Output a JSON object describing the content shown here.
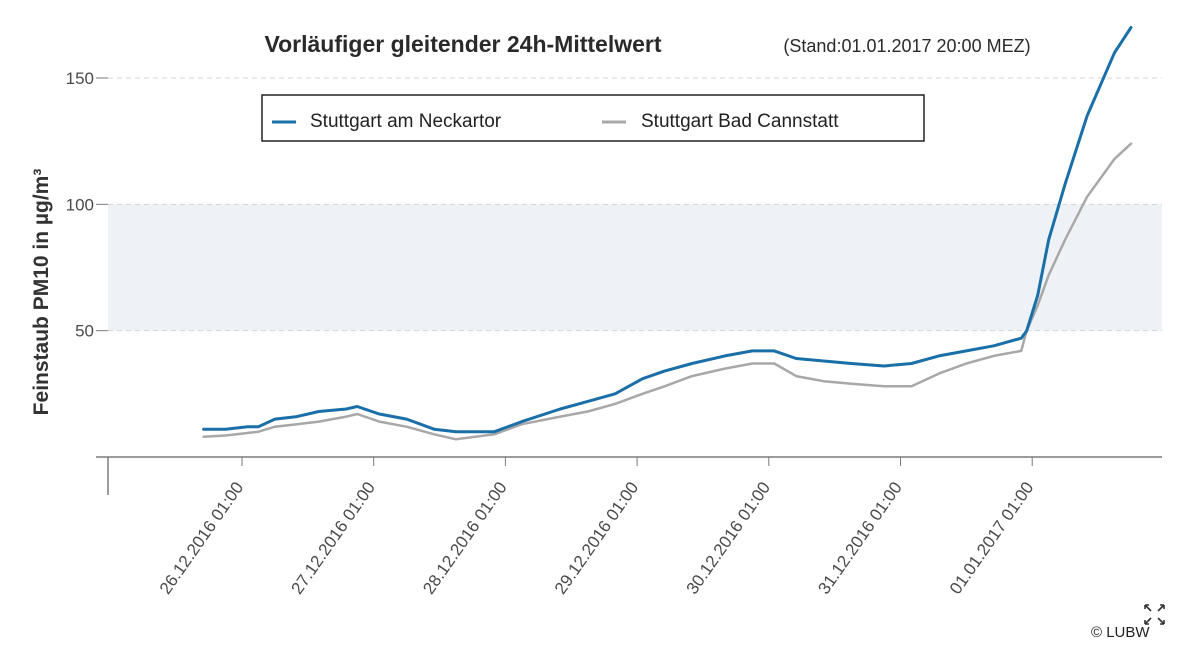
{
  "chart_data": {
    "type": "line",
    "title": "Vorläufiger gleitender 24h-Mittelwert",
    "subtitle": "(Stand:01.01.2017 20:00 MEZ)",
    "xlabel": "",
    "ylabel": "Feinstaub PM10 in µg/m³",
    "ylim": [
      0,
      150
    ],
    "yticks": [
      "50",
      "100",
      "150"
    ],
    "x_tick_labels": [
      "26.12.2016 01:00",
      "27.12.2016 01:00",
      "28.12.2016 01:00",
      "29.12.2016 01:00",
      "30.12.2016 01:00",
      "31.12.2016 01:00",
      "01.01.2017 01:00"
    ],
    "band": {
      "from": 50,
      "to": 100
    },
    "grid": "horizontal",
    "legend_position": "top-left",
    "series": [
      {
        "name": "Stuttgart am Neckartor",
        "color": "#1a6fa8",
        "points": [
          [
            "25.12.2016 18:00",
            11
          ],
          [
            "25.12.2016 22:00",
            11
          ],
          [
            "26.12.2016 02:00",
            12
          ],
          [
            "26.12.2016 04:00",
            12
          ],
          [
            "26.12.2016 07:00",
            15
          ],
          [
            "26.12.2016 11:00",
            16
          ],
          [
            "26.12.2016 15:00",
            18
          ],
          [
            "26.12.2016 20:00",
            19
          ],
          [
            "26.12.2016 22:00",
            20
          ],
          [
            "27.12.2016 02:00",
            17
          ],
          [
            "27.12.2016 07:00",
            15
          ],
          [
            "27.12.2016 12:00",
            11
          ],
          [
            "27.12.2016 16:00",
            10
          ],
          [
            "27.12.2016 23:00",
            10
          ],
          [
            "28.12.2016 04:00",
            14
          ],
          [
            "28.12.2016 11:00",
            19
          ],
          [
            "28.12.2016 16:00",
            22
          ],
          [
            "28.12.2016 21:00",
            25
          ],
          [
            "29.12.2016 02:00",
            31
          ],
          [
            "29.12.2016 06:00",
            34
          ],
          [
            "29.12.2016 11:00",
            37
          ],
          [
            "29.12.2016 17:00",
            40
          ],
          [
            "29.12.2016 22:00",
            42
          ],
          [
            "30.12.2016 02:00",
            42
          ],
          [
            "30.12.2016 06:00",
            39
          ],
          [
            "30.12.2016 11:00",
            38
          ],
          [
            "30.12.2016 16:00",
            37
          ],
          [
            "30.12.2016 22:00",
            36
          ],
          [
            "31.12.2016 03:00",
            37
          ],
          [
            "31.12.2016 08:00",
            40
          ],
          [
            "31.12.2016 13:00",
            42
          ],
          [
            "31.12.2016 18:00",
            44
          ],
          [
            "31.12.2016 23:00",
            47
          ],
          [
            "01.01.2017 00:00",
            50
          ],
          [
            "01.01.2017 02:00",
            64
          ],
          [
            "01.01.2017 04:00",
            86
          ],
          [
            "01.01.2017 07:00",
            108
          ],
          [
            "01.01.2017 11:00",
            135
          ],
          [
            "01.01.2017 16:00",
            160
          ],
          [
            "01.01.2017 19:00",
            170
          ]
        ]
      },
      {
        "name": "Stuttgart Bad Cannstatt",
        "color": "#a8a8a8",
        "points": [
          [
            "25.12.2016 18:00",
            8
          ],
          [
            "25.12.2016 22:00",
            8.5
          ],
          [
            "26.12.2016 02:00",
            9.5
          ],
          [
            "26.12.2016 04:00",
            10
          ],
          [
            "26.12.2016 07:00",
            12
          ],
          [
            "26.12.2016 11:00",
            13
          ],
          [
            "26.12.2016 15:00",
            14
          ],
          [
            "26.12.2016 20:00",
            16
          ],
          [
            "26.12.2016 22:00",
            17
          ],
          [
            "27.12.2016 02:00",
            14
          ],
          [
            "27.12.2016 07:00",
            12
          ],
          [
            "27.12.2016 12:00",
            9
          ],
          [
            "27.12.2016 16:00",
            7
          ],
          [
            "27.12.2016 23:00",
            9
          ],
          [
            "28.12.2016 04:00",
            13
          ],
          [
            "28.12.2016 11:00",
            16
          ],
          [
            "28.12.2016 16:00",
            18
          ],
          [
            "28.12.2016 21:00",
            21
          ],
          [
            "29.12.2016 02:00",
            25
          ],
          [
            "29.12.2016 06:00",
            28
          ],
          [
            "29.12.2016 11:00",
            32
          ],
          [
            "29.12.2016 17:00",
            35
          ],
          [
            "29.12.2016 22:00",
            37
          ],
          [
            "30.12.2016 02:00",
            37
          ],
          [
            "30.12.2016 06:00",
            32
          ],
          [
            "30.12.2016 11:00",
            30
          ],
          [
            "30.12.2016 16:00",
            29
          ],
          [
            "30.12.2016 22:00",
            28
          ],
          [
            "31.12.2016 03:00",
            28
          ],
          [
            "31.12.2016 08:00",
            33
          ],
          [
            "31.12.2016 13:00",
            37
          ],
          [
            "31.12.2016 18:00",
            40
          ],
          [
            "31.12.2016 23:00",
            42
          ],
          [
            "01.01.2017 00:00",
            50
          ],
          [
            "01.01.2017 02:00",
            60
          ],
          [
            "01.01.2017 04:00",
            72
          ],
          [
            "01.01.2017 07:00",
            86
          ],
          [
            "01.01.2017 11:00",
            103
          ],
          [
            "01.01.2017 16:00",
            118
          ],
          [
            "01.01.2017 19:00",
            124
          ]
        ]
      }
    ]
  },
  "ui": {
    "copyright": "© LUBW",
    "fullscreen_icon": "expand-icon"
  }
}
